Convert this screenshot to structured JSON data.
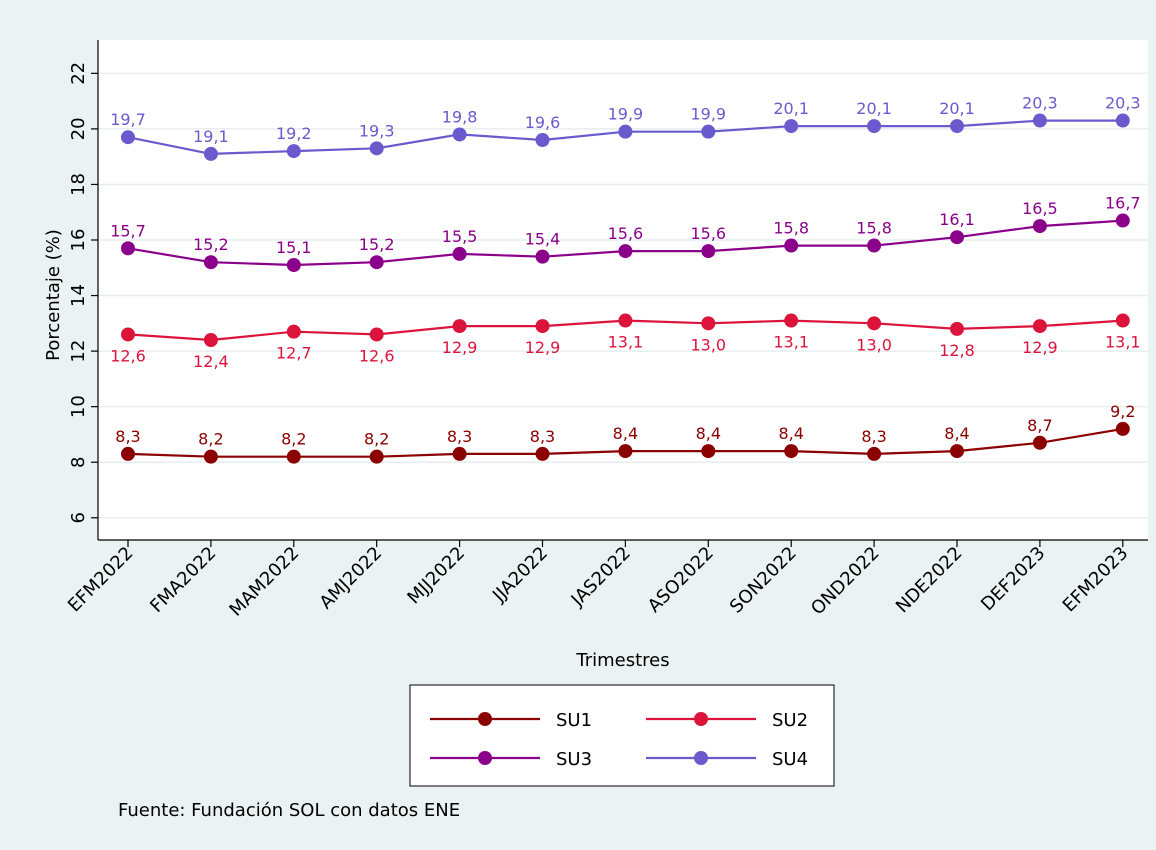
{
  "chart_data": {
    "type": "line",
    "title": "",
    "xlabel": "Trimestres",
    "ylabel": "Porcentaje (%)",
    "ylim": [
      5.2,
      23.2
    ],
    "yticks": [
      6,
      8,
      10,
      12,
      14,
      16,
      18,
      20,
      22
    ],
    "grid": true,
    "legend_position": "bottom",
    "categories": [
      "EFM2022",
      "FMA2022",
      "MAM2022",
      "AMJ2022",
      "MJJ2022",
      "JJA2022",
      "JAS2022",
      "ASO2022",
      "SON2022",
      "OND2022",
      "NDE2022",
      "DEF2023",
      "EFM2023"
    ],
    "series": [
      {
        "name": "SU1",
        "color": "#8b0000",
        "label_pos": "above",
        "values": [
          8.3,
          8.2,
          8.2,
          8.2,
          8.3,
          8.3,
          8.4,
          8.4,
          8.4,
          8.3,
          8.4,
          8.7,
          9.2
        ],
        "labels": [
          "8,3",
          "8,2",
          "8,2",
          "8,2",
          "8,3",
          "8,3",
          "8,4",
          "8,4",
          "8,4",
          "8,3",
          "8,4",
          "8,7",
          "9,2"
        ]
      },
      {
        "name": "SU2",
        "color": "#dc143c",
        "label_pos": "below",
        "values": [
          12.6,
          12.4,
          12.7,
          12.6,
          12.9,
          12.9,
          13.1,
          13.0,
          13.1,
          13.0,
          12.8,
          12.9,
          13.1
        ],
        "labels": [
          "12,6",
          "12,4",
          "12,7",
          "12,6",
          "12,9",
          "12,9",
          "13,1",
          "13,0",
          "13,1",
          "13,0",
          "12,8",
          "12,9",
          "13,1"
        ]
      },
      {
        "name": "SU3",
        "color": "#8b008b",
        "label_pos": "above",
        "values": [
          15.7,
          15.2,
          15.1,
          15.2,
          15.5,
          15.4,
          15.6,
          15.6,
          15.8,
          15.8,
          16.1,
          16.5,
          16.7
        ],
        "labels": [
          "15,7",
          "15,2",
          "15,1",
          "15,2",
          "15,5",
          "15,4",
          "15,6",
          "15,6",
          "15,8",
          "15,8",
          "16,1",
          "16,5",
          "16,7"
        ]
      },
      {
        "name": "SU4",
        "color": "#6a5acd",
        "label_pos": "above",
        "values": [
          19.7,
          19.1,
          19.2,
          19.3,
          19.8,
          19.6,
          19.9,
          19.9,
          20.1,
          20.1,
          20.1,
          20.3,
          20.3
        ],
        "labels": [
          "19,7",
          "19,1",
          "19,2",
          "19,3",
          "19,8",
          "19,6",
          "19,9",
          "19,9",
          "20,1",
          "20,1",
          "20,1",
          "20,3",
          "20,3"
        ]
      }
    ],
    "annotation": "Fuente: Fundación SOL con datos ENE"
  },
  "colors": {
    "outer_background": "#eaf2f3",
    "plot_background": "#ffffff",
    "grid": "#e6eef0",
    "axis": "#000000"
  }
}
